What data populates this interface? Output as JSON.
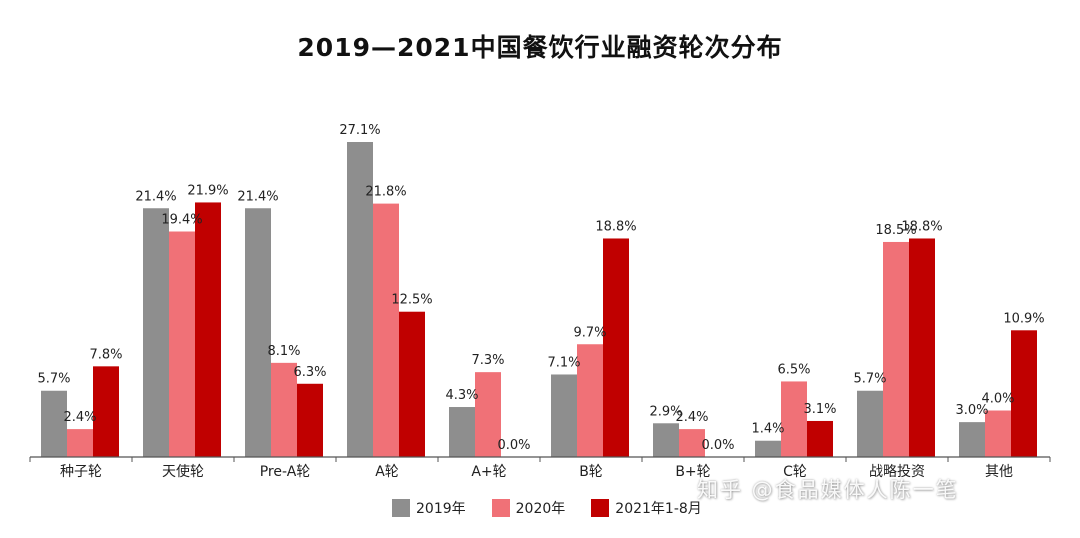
{
  "title": "2019—2021中国餐饮行业融资轮次分布",
  "watermark": "知乎 @食品媒体人陈一笔",
  "colors": {
    "series_2019": "#8e8e8e",
    "series_2020": "#f07177",
    "series_2021": "#c00000",
    "axis": "#555555",
    "text": "#222222"
  },
  "chart_data": {
    "type": "bar",
    "title": "2019—2021中国餐饮行业融资轮次分布",
    "categories": [
      "种子轮",
      "天使轮",
      "Pre-A轮",
      "A轮",
      "A+轮",
      "B轮",
      "B+轮",
      "C轮",
      "战略投资",
      "其他"
    ],
    "series": [
      {
        "name": "2019年",
        "color": "#8e8e8e",
        "values": [
          5.7,
          21.4,
          21.4,
          27.1,
          4.3,
          7.1,
          2.9,
          1.4,
          5.7,
          3.0
        ]
      },
      {
        "name": "2020年",
        "color": "#f07177",
        "values": [
          2.4,
          19.4,
          8.1,
          21.8,
          7.3,
          9.7,
          2.4,
          6.5,
          18.5,
          4.0
        ]
      },
      {
        "name": "2021年1-8月",
        "color": "#c00000",
        "values": [
          7.8,
          21.9,
          6.3,
          12.5,
          0.0,
          18.8,
          0.0,
          3.1,
          18.8,
          10.9
        ]
      }
    ],
    "unit": "%",
    "ylim": [
      0,
      27.1
    ],
    "grid": false,
    "legend_position": "bottom",
    "data_labels": true
  }
}
